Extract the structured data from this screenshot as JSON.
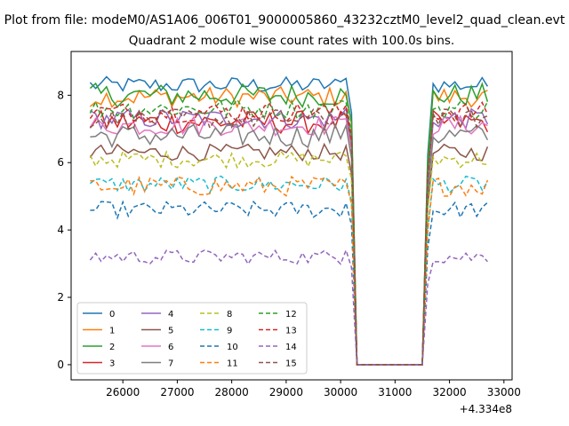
{
  "chart_data": {
    "type": "line",
    "suptitle": "Plot from file: modeM0/AS1A06_006T01_9000005860_43232cztM0_level2_quad_clean.evt",
    "title": "Quadrant 2 module wise count rates with 100.0s bins.",
    "xlabel": "",
    "ylabel": "",
    "x_offset_text": "+4.334e8",
    "x_offset_value": 433400000,
    "xlim": [
      25050,
      33150
    ],
    "ylim": [
      -0.45,
      9.3
    ],
    "x_ticks": [
      26000,
      27000,
      28000,
      29000,
      30000,
      31000,
      32000,
      33000
    ],
    "y_ticks": [
      0,
      2,
      4,
      6,
      8
    ],
    "grid": false,
    "legend": {
      "placement": "lower-left",
      "columns": 4
    },
    "x": {
      "start": 25400,
      "step": 100,
      "count": 74
    },
    "gap": {
      "start": 30300,
      "end": 31500,
      "value": 0
    },
    "colors": [
      "#1f77b4",
      "#ff7f0e",
      "#2ca02c",
      "#d62728",
      "#9467bd",
      "#8c564b",
      "#e377c2",
      "#7f7f7f",
      "#bcbd22",
      "#17becf",
      "#1f77b4",
      "#ff7f0e",
      "#2ca02c",
      "#d62728",
      "#9467bd",
      "#8c564b"
    ],
    "series": [
      {
        "name": "0",
        "style": "solid",
        "level": 8.3,
        "noise": 0.25,
        "edge": 8.5
      },
      {
        "name": "1",
        "style": "solid",
        "level": 7.95,
        "noise": 0.3,
        "edge": 8.1
      },
      {
        "name": "2",
        "style": "solid",
        "level": 8.0,
        "noise": 0.35,
        "edge": 8.0
      },
      {
        "name": "3",
        "style": "solid",
        "level": 7.2,
        "noise": 0.35,
        "edge": 7.4
      },
      {
        "name": "4",
        "style": "solid",
        "level": 7.3,
        "noise": 0.3,
        "edge": 7.6
      },
      {
        "name": "5",
        "style": "solid",
        "level": 6.3,
        "noise": 0.25,
        "edge": 6.5
      },
      {
        "name": "6",
        "style": "solid",
        "level": 7.1,
        "noise": 0.3,
        "edge": 7.3
      },
      {
        "name": "7",
        "style": "solid",
        "level": 6.8,
        "noise": 0.35,
        "edge": 7.1
      },
      {
        "name": "8",
        "style": "dashed",
        "level": 6.1,
        "noise": 0.25,
        "edge": 6.2
      },
      {
        "name": "9",
        "style": "dashed",
        "level": 5.35,
        "noise": 0.25,
        "edge": 5.5
      },
      {
        "name": "10",
        "style": "dashed",
        "level": 4.6,
        "noise": 0.25,
        "edge": 4.8
      },
      {
        "name": "11",
        "style": "dashed",
        "level": 5.3,
        "noise": 0.3,
        "edge": 5.4
      },
      {
        "name": "12",
        "style": "dashed",
        "level": 7.6,
        "noise": 0.3,
        "edge": 7.8
      },
      {
        "name": "13",
        "style": "dashed",
        "level": 7.5,
        "noise": 0.3,
        "edge": 7.7
      },
      {
        "name": "14",
        "style": "dashed",
        "level": 3.2,
        "noise": 0.22,
        "edge": 3.4
      },
      {
        "name": "15",
        "style": "dashed",
        "level": 7.3,
        "noise": 0.3,
        "edge": 7.5
      }
    ]
  }
}
